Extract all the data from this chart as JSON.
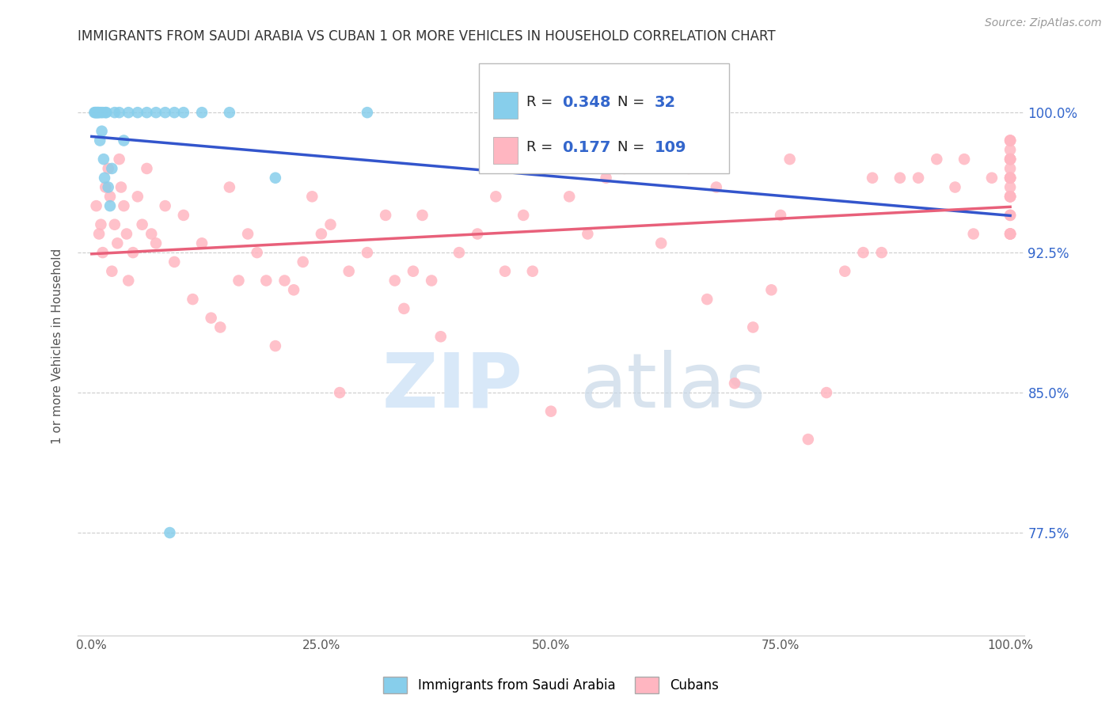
{
  "title": "IMMIGRANTS FROM SAUDI ARABIA VS CUBAN 1 OR MORE VEHICLES IN HOUSEHOLD CORRELATION CHART",
  "source": "Source: ZipAtlas.com",
  "ylabel": "1 or more Vehicles in Household",
  "xlim": [
    -1.5,
    101.5
  ],
  "ylim": [
    72.0,
    103.0
  ],
  "yticks": [
    77.5,
    85.0,
    92.5,
    100.0
  ],
  "ytick_labels": [
    "77.5%",
    "85.0%",
    "92.5%",
    "100.0%"
  ],
  "xticks": [
    0.0,
    25.0,
    50.0,
    75.0,
    100.0
  ],
  "xtick_labels": [
    "0.0%",
    "25.0%",
    "50.0%",
    "75.0%",
    "100.0%"
  ],
  "watermark_zip": "ZIP",
  "watermark_atlas": "atlas",
  "color_saudi": "#87CEEB",
  "color_cuban": "#FFB6C1",
  "line_color_saudi": "#3355CC",
  "line_color_cuban": "#E8607A",
  "saudi_r": "0.348",
  "saudi_n": "32",
  "cuban_r": "0.177",
  "cuban_n": "109",
  "legend_label_saudi": "Immigrants from Saudi Arabia",
  "legend_label_cuban": "Cubans",
  "saudi_x": [
    0.3,
    0.4,
    0.5,
    0.6,
    0.7,
    0.8,
    0.9,
    1.0,
    1.1,
    1.2,
    1.3,
    1.4,
    1.5,
    1.6,
    1.8,
    2.0,
    2.2,
    2.5,
    3.0,
    3.5,
    4.0,
    5.0,
    6.0,
    7.0,
    8.0,
    9.0,
    10.0,
    12.0,
    15.0,
    20.0,
    30.0,
    8.5
  ],
  "saudi_y": [
    100.0,
    100.0,
    100.0,
    100.0,
    100.0,
    100.0,
    98.5,
    100.0,
    99.0,
    100.0,
    97.5,
    96.5,
    100.0,
    100.0,
    96.0,
    95.0,
    97.0,
    100.0,
    100.0,
    98.5,
    100.0,
    100.0,
    100.0,
    100.0,
    100.0,
    100.0,
    100.0,
    100.0,
    100.0,
    96.5,
    100.0,
    77.5
  ],
  "cuban_x": [
    0.5,
    0.8,
    1.0,
    1.2,
    1.5,
    1.8,
    2.0,
    2.2,
    2.5,
    2.8,
    3.0,
    3.2,
    3.5,
    3.8,
    4.0,
    4.5,
    5.0,
    5.5,
    6.0,
    6.5,
    7.0,
    8.0,
    9.0,
    10.0,
    11.0,
    12.0,
    13.0,
    14.0,
    15.0,
    16.0,
    17.0,
    18.0,
    19.0,
    20.0,
    21.0,
    22.0,
    23.0,
    24.0,
    25.0,
    26.0,
    27.0,
    28.0,
    30.0,
    32.0,
    33.0,
    34.0,
    35.0,
    36.0,
    37.0,
    38.0,
    40.0,
    42.0,
    44.0,
    45.0,
    47.0,
    48.0,
    50.0,
    52.0,
    54.0,
    55.0,
    56.0,
    58.0,
    60.0,
    62.0,
    65.0,
    67.0,
    68.0,
    70.0,
    72.0,
    74.0,
    75.0,
    76.0,
    78.0,
    80.0,
    82.0,
    84.0,
    85.0,
    86.0,
    88.0,
    90.0,
    92.0,
    94.0,
    95.0,
    96.0,
    98.0,
    100.0,
    100.0,
    100.0,
    100.0,
    100.0,
    100.0,
    100.0,
    100.0,
    100.0,
    100.0,
    100.0,
    100.0,
    100.0,
    100.0,
    100.0,
    100.0,
    100.0,
    100.0,
    100.0,
    100.0,
    100.0,
    100.0,
    100.0,
    100.0
  ],
  "cuban_y": [
    95.0,
    93.5,
    94.0,
    92.5,
    96.0,
    97.0,
    95.5,
    91.5,
    94.0,
    93.0,
    97.5,
    96.0,
    95.0,
    93.5,
    91.0,
    92.5,
    95.5,
    94.0,
    97.0,
    93.5,
    93.0,
    95.0,
    92.0,
    94.5,
    90.0,
    93.0,
    89.0,
    88.5,
    96.0,
    91.0,
    93.5,
    92.5,
    91.0,
    87.5,
    91.0,
    90.5,
    92.0,
    95.5,
    93.5,
    94.0,
    85.0,
    91.5,
    92.5,
    94.5,
    91.0,
    89.5,
    91.5,
    94.5,
    91.0,
    88.0,
    92.5,
    93.5,
    95.5,
    91.5,
    94.5,
    91.5,
    84.0,
    95.5,
    93.5,
    97.5,
    96.5,
    97.0,
    97.5,
    93.0,
    97.0,
    90.0,
    96.0,
    85.5,
    88.5,
    90.5,
    94.5,
    97.5,
    82.5,
    85.0,
    91.5,
    92.5,
    96.5,
    92.5,
    96.5,
    96.5,
    97.5,
    96.0,
    97.5,
    93.5,
    96.5,
    94.5,
    97.5,
    96.0,
    93.5,
    98.0,
    95.5,
    97.0,
    93.5,
    96.5,
    98.5,
    95.5,
    94.5,
    97.5,
    96.5,
    93.5,
    98.5,
    95.5,
    97.5,
    96.5,
    93.5,
    98.5,
    95.5,
    97.5,
    96.5
  ]
}
